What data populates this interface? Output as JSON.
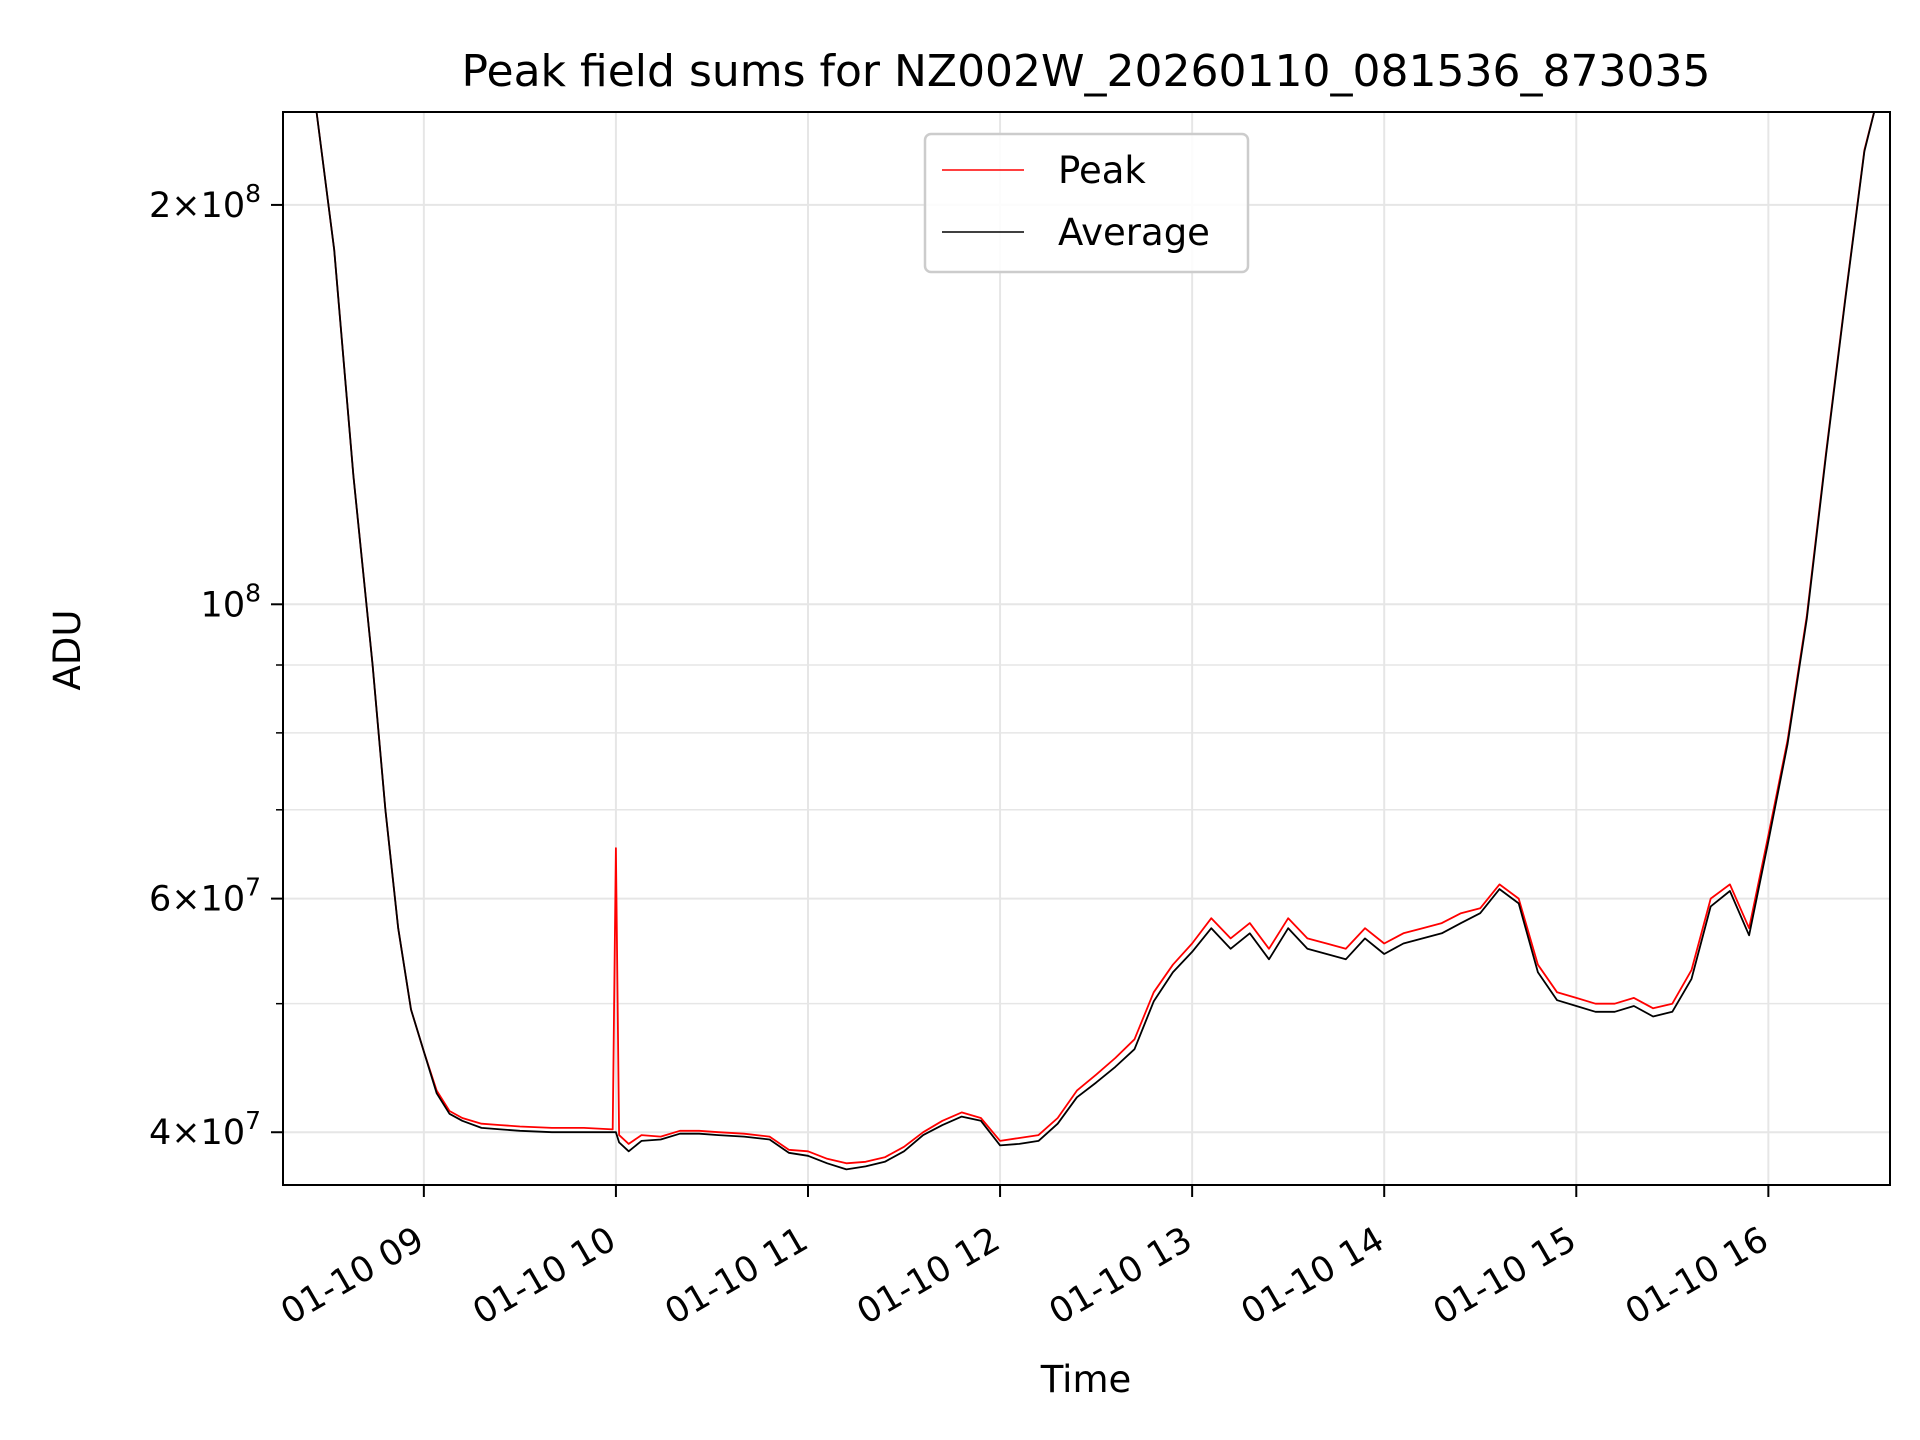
{
  "chart_data": {
    "type": "line",
    "title": "Peak field sums for NZ002W_20260110_081536_873035",
    "xlabel": "Time",
    "ylabel": "ADU",
    "xaxis_type": "datetime",
    "xlim": [
      "2026-01-10 08:16",
      "2026-01-10 16:38"
    ],
    "ylim": [
      36500000,
      235000000
    ],
    "yscale": "log",
    "grid": true,
    "legend_position": "upper center",
    "x_tick_values": [
      "2026-01-10 09:00",
      "2026-01-10 10:00",
      "2026-01-10 11:00",
      "2026-01-10 12:00",
      "2026-01-10 13:00",
      "2026-01-10 14:00",
      "2026-01-10 15:00",
      "2026-01-10 16:00"
    ],
    "x_tick_labels": [
      "01-10 09",
      "01-10 10",
      "01-10 11",
      "01-10 12",
      "01-10 13",
      "01-10 14",
      "01-10 15",
      "01-10 16"
    ],
    "y_major_ticks": [
      {
        "value": 40000000,
        "mantissa": "4",
        "exponent": "7"
      },
      {
        "value": 60000000,
        "mantissa": "6",
        "exponent": "7"
      },
      {
        "value": 100000000,
        "mantissa": "",
        "exponent": "8"
      },
      {
        "value": 200000000,
        "mantissa": "2",
        "exponent": "8"
      }
    ],
    "y_minor_ticks": [
      50000000,
      70000000,
      80000000,
      90000000
    ],
    "series": [
      {
        "name": "Peak",
        "color": "#ff0000",
        "x": [
          "2026-01-10 08:26",
          "2026-01-10 08:32",
          "2026-01-10 08:38",
          "2026-01-10 08:44",
          "2026-01-10 08:48",
          "2026-01-10 08:52",
          "2026-01-10 08:56",
          "2026-01-10 09:00",
          "2026-01-10 09:04",
          "2026-01-10 09:08",
          "2026-01-10 09:12",
          "2026-01-10 09:18",
          "2026-01-10 09:24",
          "2026-01-10 09:30",
          "2026-01-10 09:40",
          "2026-01-10 09:50",
          "2026-01-10 09:59",
          "2026-01-10 10:00",
          "2026-01-10 10:01",
          "2026-01-10 10:04",
          "2026-01-10 10:08",
          "2026-01-10 10:14",
          "2026-01-10 10:20",
          "2026-01-10 10:26",
          "2026-01-10 10:32",
          "2026-01-10 10:40",
          "2026-01-10 10:48",
          "2026-01-10 10:54",
          "2026-01-10 11:00",
          "2026-01-10 11:06",
          "2026-01-10 11:12",
          "2026-01-10 11:18",
          "2026-01-10 11:24",
          "2026-01-10 11:30",
          "2026-01-10 11:36",
          "2026-01-10 11:42",
          "2026-01-10 11:48",
          "2026-01-10 11:54",
          "2026-01-10 12:00",
          "2026-01-10 12:06",
          "2026-01-10 12:12",
          "2026-01-10 12:18",
          "2026-01-10 12:24",
          "2026-01-10 12:30",
          "2026-01-10 12:36",
          "2026-01-10 12:42",
          "2026-01-10 12:48",
          "2026-01-10 12:54",
          "2026-01-10 13:00",
          "2026-01-10 13:06",
          "2026-01-10 13:12",
          "2026-01-10 13:18",
          "2026-01-10 13:24",
          "2026-01-10 13:30",
          "2026-01-10 13:36",
          "2026-01-10 13:42",
          "2026-01-10 13:48",
          "2026-01-10 13:54",
          "2026-01-10 14:00",
          "2026-01-10 14:06",
          "2026-01-10 14:12",
          "2026-01-10 14:18",
          "2026-01-10 14:24",
          "2026-01-10 14:30",
          "2026-01-10 14:36",
          "2026-01-10 14:42",
          "2026-01-10 14:48",
          "2026-01-10 14:54",
          "2026-01-10 15:00",
          "2026-01-10 15:06",
          "2026-01-10 15:12",
          "2026-01-10 15:18",
          "2026-01-10 15:24",
          "2026-01-10 15:30",
          "2026-01-10 15:36",
          "2026-01-10 15:42",
          "2026-01-10 15:48",
          "2026-01-10 15:54",
          "2026-01-10 16:00",
          "2026-01-10 16:06",
          "2026-01-10 16:12",
          "2026-01-10 16:18",
          "2026-01-10 16:24",
          "2026-01-10 16:30",
          "2026-01-10 16:34"
        ],
        "values": [
          240000000,
          185000000,
          125000000,
          90000000,
          70000000,
          57000000,
          49500000,
          46000000,
          43000000,
          41500000,
          41000000,
          40600000,
          40500000,
          40400000,
          40300000,
          40300000,
          40200000,
          65500000,
          39800000,
          39200000,
          39800000,
          39700000,
          40100000,
          40100000,
          40000000,
          39900000,
          39700000,
          38800000,
          38700000,
          38200000,
          37900000,
          38000000,
          38300000,
          39000000,
          40000000,
          40800000,
          41400000,
          41000000,
          39400000,
          39600000,
          39800000,
          41000000,
          43000000,
          44200000,
          45500000,
          47000000,
          51000000,
          53500000,
          55500000,
          58000000,
          56000000,
          57500000,
          55000000,
          58000000,
          56000000,
          55500000,
          55000000,
          57000000,
          55500000,
          56500000,
          57000000,
          57500000,
          58500000,
          59000000,
          61500000,
          60000000,
          53500000,
          51000000,
          50500000,
          50000000,
          50000000,
          50500000,
          49600000,
          50000000,
          53000000,
          60000000,
          61500000,
          57000000,
          67000000,
          79000000,
          98000000,
          130000000,
          170000000,
          220000000,
          240000000
        ]
      },
      {
        "name": "Average",
        "color": "#000000",
        "x": [
          "2026-01-10 08:26",
          "2026-01-10 08:32",
          "2026-01-10 08:38",
          "2026-01-10 08:44",
          "2026-01-10 08:48",
          "2026-01-10 08:52",
          "2026-01-10 08:56",
          "2026-01-10 09:00",
          "2026-01-10 09:04",
          "2026-01-10 09:08",
          "2026-01-10 09:12",
          "2026-01-10 09:18",
          "2026-01-10 09:24",
          "2026-01-10 09:30",
          "2026-01-10 09:40",
          "2026-01-10 09:50",
          "2026-01-10 09:59",
          "2026-01-10 10:00",
          "2026-01-10 10:01",
          "2026-01-10 10:04",
          "2026-01-10 10:08",
          "2026-01-10 10:14",
          "2026-01-10 10:20",
          "2026-01-10 10:26",
          "2026-01-10 10:32",
          "2026-01-10 10:40",
          "2026-01-10 10:48",
          "2026-01-10 10:54",
          "2026-01-10 11:00",
          "2026-01-10 11:06",
          "2026-01-10 11:12",
          "2026-01-10 11:18",
          "2026-01-10 11:24",
          "2026-01-10 11:30",
          "2026-01-10 11:36",
          "2026-01-10 11:42",
          "2026-01-10 11:48",
          "2026-01-10 11:54",
          "2026-01-10 12:00",
          "2026-01-10 12:06",
          "2026-01-10 12:12",
          "2026-01-10 12:18",
          "2026-01-10 12:24",
          "2026-01-10 12:30",
          "2026-01-10 12:36",
          "2026-01-10 12:42",
          "2026-01-10 12:48",
          "2026-01-10 12:54",
          "2026-01-10 13:00",
          "2026-01-10 13:06",
          "2026-01-10 13:12",
          "2026-01-10 13:18",
          "2026-01-10 13:24",
          "2026-01-10 13:30",
          "2026-01-10 13:36",
          "2026-01-10 13:42",
          "2026-01-10 13:48",
          "2026-01-10 13:54",
          "2026-01-10 14:00",
          "2026-01-10 14:06",
          "2026-01-10 14:12",
          "2026-01-10 14:18",
          "2026-01-10 14:24",
          "2026-01-10 14:30",
          "2026-01-10 14:36",
          "2026-01-10 14:42",
          "2026-01-10 14:48",
          "2026-01-10 14:54",
          "2026-01-10 15:00",
          "2026-01-10 15:06",
          "2026-01-10 15:12",
          "2026-01-10 15:18",
          "2026-01-10 15:24",
          "2026-01-10 15:30",
          "2026-01-10 15:36",
          "2026-01-10 15:42",
          "2026-01-10 15:48",
          "2026-01-10 15:54",
          "2026-01-10 16:00",
          "2026-01-10 16:06",
          "2026-01-10 16:12",
          "2026-01-10 16:18",
          "2026-01-10 16:24",
          "2026-01-10 16:30",
          "2026-01-10 16:34"
        ],
        "values": [
          240000000,
          185000000,
          125000000,
          90000000,
          70000000,
          57000000,
          49500000,
          46000000,
          42800000,
          41300000,
          40800000,
          40300000,
          40200000,
          40100000,
          40000000,
          40000000,
          40000000,
          40000000,
          39300000,
          38700000,
          39400000,
          39500000,
          39900000,
          39900000,
          39800000,
          39700000,
          39500000,
          38600000,
          38400000,
          37900000,
          37500000,
          37700000,
          38000000,
          38700000,
          39800000,
          40500000,
          41100000,
          40800000,
          39100000,
          39200000,
          39400000,
          40600000,
          42500000,
          43600000,
          44800000,
          46200000,
          50200000,
          52800000,
          54700000,
          57000000,
          55000000,
          56500000,
          54000000,
          57000000,
          55000000,
          54500000,
          54000000,
          56000000,
          54500000,
          55500000,
          56000000,
          56500000,
          57500000,
          58500000,
          61000000,
          59500000,
          52800000,
          50300000,
          49800000,
          49300000,
          49300000,
          49800000,
          48900000,
          49300000,
          52200000,
          59200000,
          60800000,
          56300000,
          66300000,
          78500000,
          97500000,
          129500000,
          169500000,
          219500000,
          240000000
        ]
      }
    ]
  }
}
